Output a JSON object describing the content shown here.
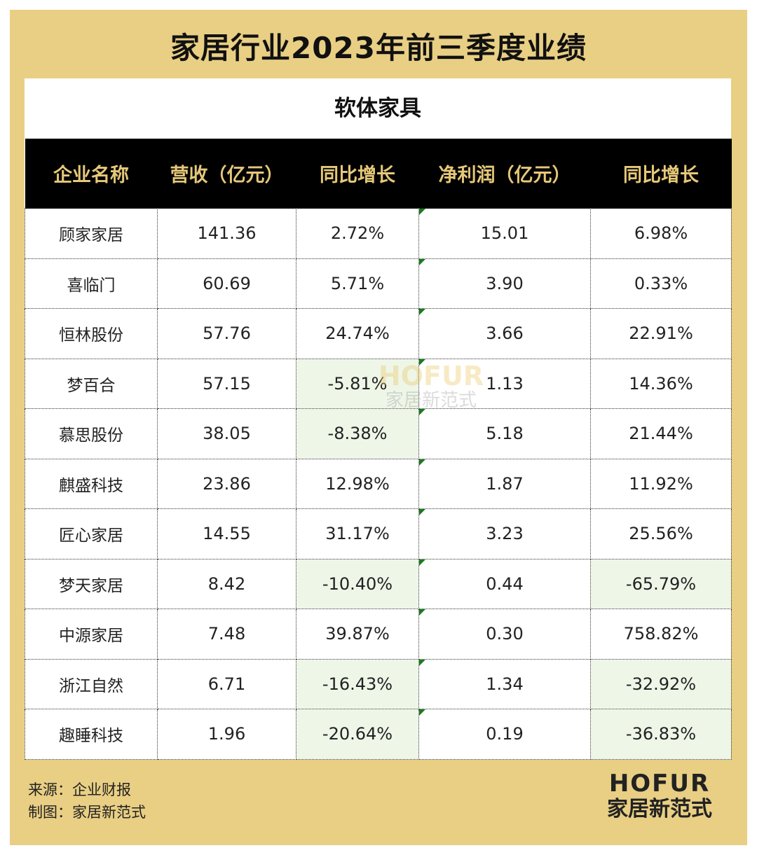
{
  "title": "家居行业2023年前三季度业绩",
  "chart_data": {
    "type": "table",
    "subtitle": "软体家具",
    "columns": [
      "企业名称",
      "营收（亿元）",
      "同比增长",
      "净利润（亿元）",
      "同比增长"
    ],
    "rows": [
      {
        "company": "顾家家居",
        "revenue": "141.36",
        "revenue_yoy": "2.72%",
        "net_profit": "15.01",
        "profit_yoy": "6.98%"
      },
      {
        "company": "喜临门",
        "revenue": "60.69",
        "revenue_yoy": "5.71%",
        "net_profit": "3.90",
        "profit_yoy": "0.33%"
      },
      {
        "company": "恒林股份",
        "revenue": "57.76",
        "revenue_yoy": "24.74%",
        "net_profit": "3.66",
        "profit_yoy": "22.91%"
      },
      {
        "company": "梦百合",
        "revenue": "57.15",
        "revenue_yoy": "-5.81%",
        "net_profit": "1.13",
        "profit_yoy": "14.36%"
      },
      {
        "company": "慕思股份",
        "revenue": "38.05",
        "revenue_yoy": "-8.38%",
        "net_profit": "5.18",
        "profit_yoy": "21.44%"
      },
      {
        "company": "麒盛科技",
        "revenue": "23.86",
        "revenue_yoy": "12.98%",
        "net_profit": "1.87",
        "profit_yoy": "11.92%"
      },
      {
        "company": "匠心家居",
        "revenue": "14.55",
        "revenue_yoy": "31.17%",
        "net_profit": "3.23",
        "profit_yoy": "25.56%"
      },
      {
        "company": "梦天家居",
        "revenue": "8.42",
        "revenue_yoy": "-10.40%",
        "net_profit": "0.44",
        "profit_yoy": "-65.79%"
      },
      {
        "company": "中源家居",
        "revenue": "7.48",
        "revenue_yoy": "39.87%",
        "net_profit": "0.30",
        "profit_yoy": "758.82%"
      },
      {
        "company": "浙江自然",
        "revenue": "6.71",
        "revenue_yoy": "-16.43%",
        "net_profit": "1.34",
        "profit_yoy": "-32.92%"
      },
      {
        "company": "趣睡科技",
        "revenue": "1.96",
        "revenue_yoy": "-20.64%",
        "net_profit": "0.19",
        "profit_yoy": "-36.83%"
      }
    ]
  },
  "watermark": {
    "top": "HOFUR",
    "bottom": "家居新范式"
  },
  "footer": {
    "source": "来源：企业财报",
    "credit": "制图：家居新范式"
  },
  "brand": {
    "top": "HOFUR",
    "bottom": "家居新范式"
  },
  "colors": {
    "frame": "#e9cf84",
    "header_bg": "#000000",
    "header_text": "#e6c879",
    "negative_highlight": "#eef6e8",
    "marker": "#1a7a20"
  }
}
